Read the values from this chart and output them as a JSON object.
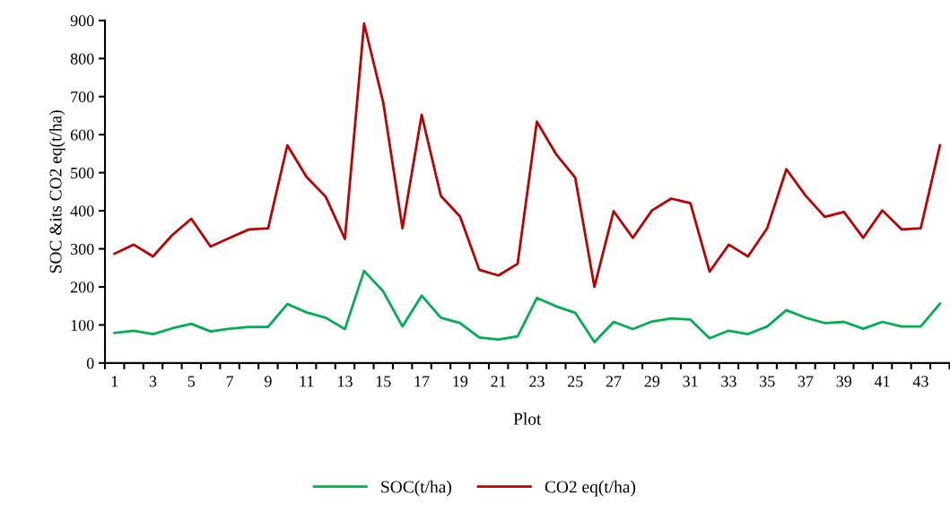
{
  "chart_data": {
    "type": "line",
    "xlabel": "Plot",
    "ylabel": "SOC &its CO2 eq(t/ha)",
    "categories": [
      "1",
      null,
      "3",
      null,
      "5",
      null,
      "7",
      null,
      "9",
      null,
      "11",
      null,
      "13",
      null,
      "15",
      null,
      "17",
      null,
      "19",
      null,
      "21",
      null,
      "23",
      null,
      "25",
      null,
      "27",
      null,
      "29",
      null,
      "31",
      null,
      "33",
      null,
      "35",
      null,
      "37",
      null,
      "39",
      null,
      "41",
      null,
      "43",
      null
    ],
    "series": [
      {
        "name": "SOC(t/ha)",
        "color": "#00b050",
        "values": [
          79,
          85,
          76,
          91,
          103,
          83,
          90,
          95,
          95,
          155,
          133,
          119,
          89,
          242,
          188,
          96,
          177,
          119,
          105,
          67,
          62,
          70,
          171,
          149,
          132,
          55,
          108,
          89,
          109,
          117,
          114,
          65,
          85,
          76,
          96,
          139,
          119,
          105,
          108,
          90,
          108,
          96,
          96,
          156
        ]
      },
      {
        "name": "CO2 eq(t/ha)",
        "color": "#c00000",
        "values": [
          287,
          311,
          280,
          336,
          379,
          306,
          329,
          351,
          354,
          572,
          489,
          437,
          326,
          892,
          684,
          354,
          652,
          439,
          385,
          245,
          230,
          261,
          634,
          549,
          487,
          200,
          399,
          329,
          401,
          432,
          420,
          240,
          311,
          280,
          354,
          509,
          440,
          384,
          397,
          329,
          401,
          351,
          354,
          572
        ]
      }
    ],
    "ylim": [
      0,
      900
    ],
    "yticks": [
      0,
      100,
      200,
      300,
      400,
      500,
      600,
      700,
      800,
      900
    ],
    "grid": false,
    "legend": "bottom",
    "marker": "none",
    "line_style": "solid"
  }
}
